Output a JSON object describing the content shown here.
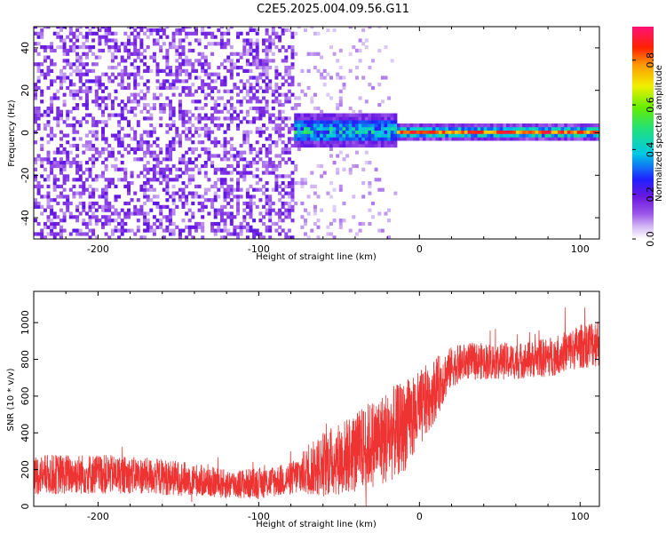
{
  "title": "C2E5.2025.004.09.56.G11",
  "chart_data": [
    {
      "type": "heatmap",
      "name": "spectrogram",
      "xlabel": "Height of straight line (km)",
      "ylabel": "Frequency (Hz)",
      "xlim": [
        -240,
        112
      ],
      "ylim": [
        -50,
        50
      ],
      "xticks": [
        -200,
        -100,
        0,
        100
      ],
      "yticks": [
        -40,
        -20,
        0,
        20,
        40
      ],
      "colorbar": {
        "label": "Normalized spectral amplitude",
        "range": [
          0,
          0.95
        ],
        "ticks": [
          0.0,
          0.2,
          0.4,
          0.6,
          0.8
        ]
      },
      "regions": [
        {
          "x_range": [
            -240,
            -78
          ],
          "description": "broadband noise",
          "amplitude": 0.05
        },
        {
          "x_range": [
            -78,
            -14
          ],
          "description": "emerging signal near 0 Hz",
          "amplitude": 0.45
        },
        {
          "x_range": [
            -14,
            112
          ],
          "description": "strong narrow carrier at 0 Hz",
          "amplitude": 0.9
        }
      ]
    },
    {
      "type": "line",
      "name": "snr",
      "xlabel": "Height of straight line (km)",
      "ylabel": "SNR (10 * v/v)",
      "xlim": [
        -240,
        112
      ],
      "ylim": [
        0,
        1170
      ],
      "xticks": [
        -200,
        -100,
        0,
        100
      ],
      "yticks": [
        0,
        200,
        400,
        600,
        800,
        1000
      ],
      "series": [
        {
          "name": "SNR",
          "color": "#ee3333",
          "x": [
            -240,
            -220,
            -200,
            -180,
            -160,
            -140,
            -120,
            -100,
            -80,
            -70,
            -60,
            -50,
            -40,
            -30,
            -20,
            -10,
            0,
            10,
            20,
            30,
            40,
            50,
            60,
            70,
            80,
            90,
            100,
            112
          ],
          "mean": [
            170,
            175,
            175,
            170,
            160,
            145,
            120,
            125,
            150,
            190,
            230,
            260,
            290,
            340,
            380,
            430,
            520,
            640,
            760,
            790,
            790,
            790,
            790,
            800,
            810,
            840,
            870,
            900
          ],
          "spread": [
            110,
            110,
            110,
            100,
            100,
            90,
            80,
            85,
            90,
            130,
            180,
            200,
            220,
            240,
            260,
            250,
            220,
            170,
            110,
            100,
            100,
            100,
            100,
            100,
            110,
            110,
            120,
            140
          ]
        }
      ]
    }
  ]
}
